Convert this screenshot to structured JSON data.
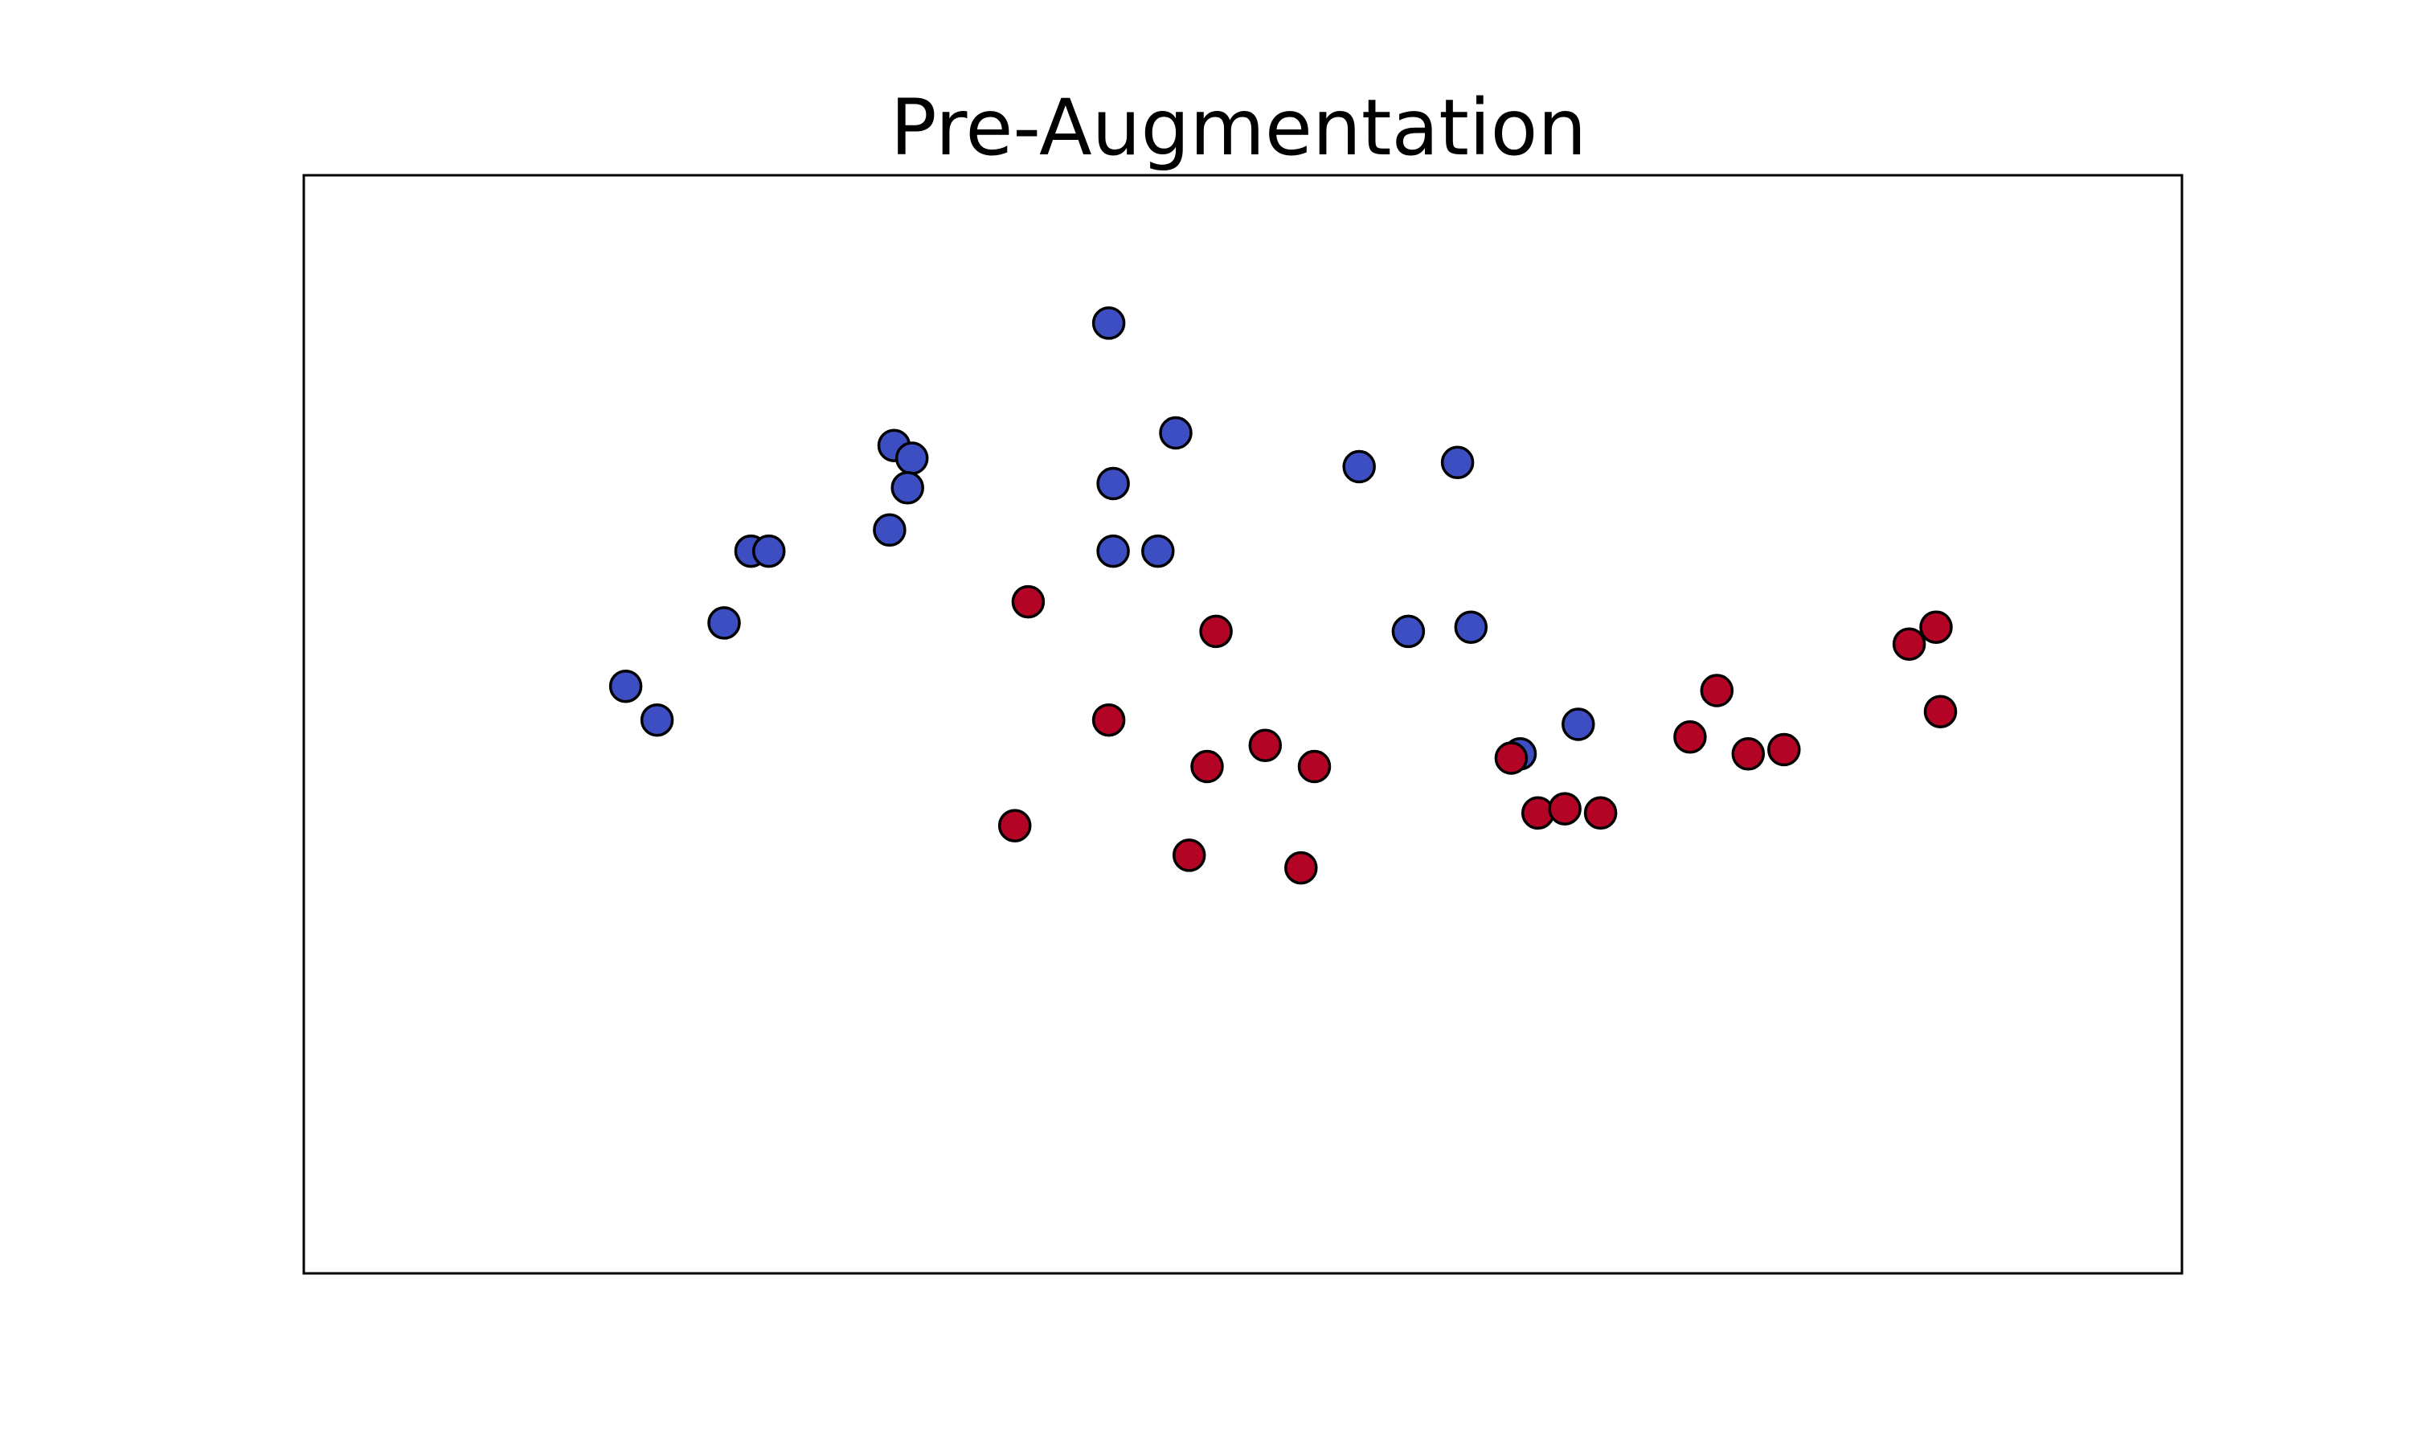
{
  "chart_data": {
    "type": "scatter",
    "title": "Pre-Augmentation",
    "xlabel": "",
    "ylabel": "",
    "xlim": [
      -1.6,
      2.6
    ],
    "ylim": [
      -1.2,
      1.4
    ],
    "grid": false,
    "ticks": "hidden",
    "legend": "none",
    "series": [
      {
        "color": "#3c4ec2",
        "points": [
          [
            0.2,
            1.05
          ],
          [
            0.35,
            0.79
          ],
          [
            -0.28,
            0.76
          ],
          [
            -0.24,
            0.73
          ],
          [
            -0.25,
            0.66
          ],
          [
            0.21,
            0.67
          ],
          [
            0.76,
            0.71
          ],
          [
            0.98,
            0.72
          ],
          [
            -0.29,
            0.56
          ],
          [
            0.21,
            0.51
          ],
          [
            0.31,
            0.51
          ],
          [
            -0.6,
            0.51
          ],
          [
            -0.56,
            0.51
          ],
          [
            -0.66,
            0.34
          ],
          [
            0.87,
            0.32
          ],
          [
            1.01,
            0.33
          ],
          [
            -0.88,
            0.19
          ],
          [
            -0.81,
            0.11
          ],
          [
            1.25,
            0.1
          ],
          [
            1.12,
            0.03
          ]
        ]
      },
      {
        "color": "#b40426",
        "points": [
          [
            0.02,
            0.39
          ],
          [
            0.44,
            0.32
          ],
          [
            0.2,
            0.11
          ],
          [
            0.42,
            0.0
          ],
          [
            0.55,
            0.05
          ],
          [
            0.66,
            0.0
          ],
          [
            1.1,
            0.02
          ],
          [
            1.16,
            -0.11
          ],
          [
            1.22,
            -0.1
          ],
          [
            1.3,
            -0.11
          ],
          [
            1.5,
            0.07
          ],
          [
            1.56,
            0.18
          ],
          [
            1.63,
            0.03
          ],
          [
            1.71,
            0.04
          ],
          [
            1.99,
            0.29
          ],
          [
            2.05,
            0.33
          ],
          [
            2.06,
            0.13
          ],
          [
            -0.01,
            -0.14
          ],
          [
            0.38,
            -0.21
          ],
          [
            0.63,
            -0.24
          ]
        ]
      }
    ]
  }
}
